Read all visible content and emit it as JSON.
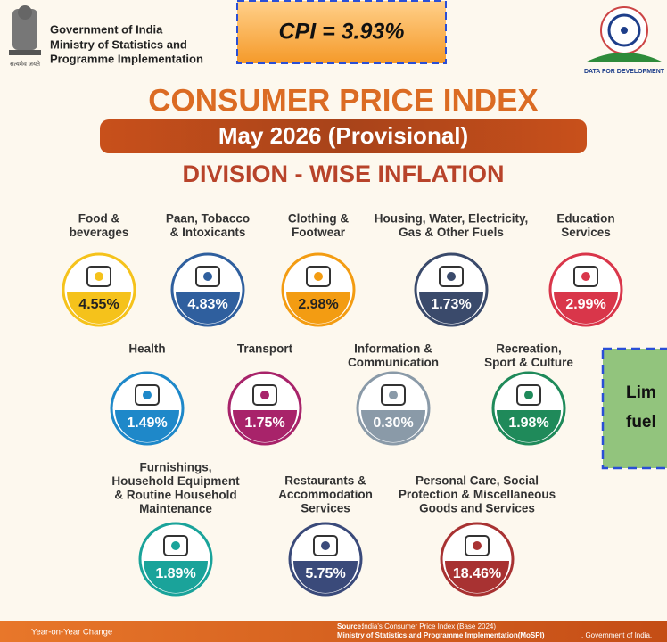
{
  "header": {
    "emblem_motto": "सत्यमेव जयते",
    "org_lines": [
      "Government of India",
      "Ministry of Statistics and",
      "Programme Implementation"
    ],
    "logo_text": "DATA FOR DEVELOPMENT"
  },
  "badge": "CPI = 3.93%",
  "title": "CONSUMER PRICE INDEX",
  "subtitle": "May 2026 (Provisional)",
  "section_title": "DIVISION - WISE INFLATION",
  "divisions": [
    {
      "label": [
        "Food &",
        "beverages"
      ],
      "value": "4.55%"
    },
    {
      "label": [
        "Paan, Tobacco",
        "& Intoxicants"
      ],
      "value": "4.83%"
    },
    {
      "label": [
        "Clothing &",
        "Footwear"
      ],
      "value": "2.98%"
    },
    {
      "label": [
        "Housing, Water, Electricity,",
        "Gas & Other Fuels"
      ],
      "value": "1.73%"
    },
    {
      "label": [
        "Education",
        "Services"
      ],
      "value": "2.99%"
    },
    {
      "label": [
        "Health"
      ],
      "value": "1.49%"
    },
    {
      "label": [
        "Transport"
      ],
      "value": "1.75%"
    },
    {
      "label": [
        "Information &",
        "Communication"
      ],
      "value": "0.30%"
    },
    {
      "label": [
        "Recreation,",
        "Sport & Culture"
      ],
      "value": "1.98%"
    },
    {
      "label": [
        "Furnishings,",
        "Household Equipment",
        "& Routine Household",
        "Maintenance"
      ],
      "value": "1.89%"
    },
    {
      "label": [
        "Restaurants &",
        "Accommodation",
        "Services"
      ],
      "value": "5.75%"
    },
    {
      "label": [
        "Personal Care, Social",
        "Protection & Miscellaneous",
        "Goods and Services"
      ],
      "value": "18.46%"
    }
  ],
  "callout_lines": [
    "Lim",
    "fuel"
  ],
  "footer": {
    "left": "Year-on-Year Change",
    "source_label": "Source:",
    "source_text": "India's Consumer Price Index (Base 2024)",
    "ministry": "Ministry of Statistics and Programme Implementation(MoSPI)",
    "ministry_suffix": ", Government of India."
  }
}
